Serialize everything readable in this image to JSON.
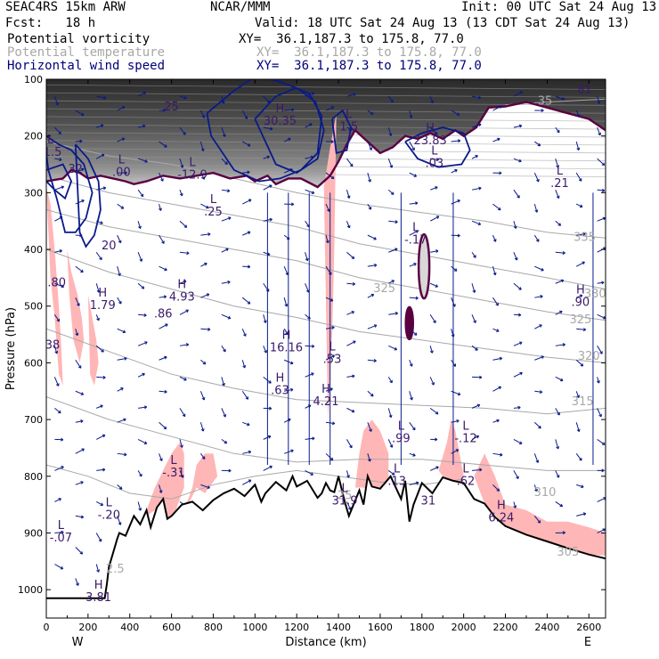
{
  "header": {
    "model": "SEAC4RS 15km ARW",
    "center": "NCAR/MMM",
    "init": "Init: 00 UTC Sat 24 Aug 13",
    "fcst": "Fcst:   18 h",
    "valid": "Valid: 18 UTC Sat 24 Aug 13 (13 CDT Sat 24 Aug 13)",
    "fields": [
      {
        "label": "Potential vorticity",
        "xy": "XY=  36.1,187.3 to 175.8, 77.0",
        "color": "#000000"
      },
      {
        "label": "Potential temperature",
        "xy": "XY=  36.1,187.3 to 175.8, 77.0",
        "color": "#a8a8a8"
      },
      {
        "label": "Horizontal wind speed",
        "xy": "XY=  36.1,187.3 to 175.8, 77.0",
        "color": "#00007a"
      }
    ]
  },
  "colors": {
    "pv_contour": "#5a0040",
    "pv_fill_dark": "#3a3a3a",
    "theta_contour": "#a8a8a8",
    "wind_contour": "#0a1a8a",
    "hl_label": "#3a1a6a",
    "shading_pink": "#ffb6b6",
    "terrain": "#000000"
  },
  "chart_data": {
    "type": "cross-section",
    "xlabel": "Distance (km)",
    "ylabel": "Pressure (hPa)",
    "xlim": [
      0,
      2680
    ],
    "ylim": [
      1050,
      100
    ],
    "x_ticks": [
      "0",
      "200",
      "400",
      "600",
      "800",
      "1000",
      "1200",
      "1400",
      "1600",
      "1800",
      "2000",
      "2200",
      "2400",
      "2600"
    ],
    "x_tick_values": [
      0,
      200,
      400,
      600,
      800,
      1000,
      1200,
      1400,
      1600,
      1800,
      2000,
      2200,
      2400,
      2600
    ],
    "y_ticks": [
      "100",
      "200",
      "300",
      "400",
      "500",
      "600",
      "700",
      "800",
      "900",
      "1000"
    ],
    "y_tick_values": [
      100,
      200,
      300,
      400,
      500,
      600,
      700,
      800,
      900,
      1000
    ],
    "end_labels": {
      "left": "W",
      "right": "E"
    },
    "terrain": {
      "x": [
        0,
        100,
        280,
        290,
        300,
        320,
        340,
        350,
        380,
        420,
        450,
        480,
        500,
        530,
        560,
        580,
        600,
        650,
        700,
        750,
        800,
        850,
        900,
        950,
        1000,
        1030,
        1050,
        1100,
        1150,
        1180,
        1200,
        1250,
        1300,
        1320,
        1340,
        1360,
        1380,
        1400,
        1430,
        1450,
        1500,
        1520,
        1540,
        1560,
        1600,
        1650,
        1700,
        1720,
        1740,
        1760,
        1800,
        1850,
        1900,
        1950,
        2000,
        2050,
        2100,
        2150,
        2200,
        2300,
        2400,
        2500,
        2600,
        2680
      ],
      "p": [
        1015,
        1015,
        1015,
        990,
        960,
        935,
        910,
        900,
        905,
        870,
        885,
        860,
        890,
        855,
        840,
        875,
        870,
        850,
        845,
        860,
        842,
        830,
        822,
        835,
        815,
        845,
        830,
        810,
        825,
        800,
        818,
        808,
        838,
        830,
        812,
        825,
        828,
        800,
        845,
        870,
        825,
        850,
        800,
        818,
        822,
        800,
        840,
        808,
        880,
        850,
        812,
        830,
        802,
        808,
        812,
        840,
        848,
        872,
        888,
        903,
        915,
        927,
        938,
        945
      ]
    },
    "theta_levels": [
      "305",
      "310",
      "315",
      "320",
      "325",
      "330",
      "335",
      "35"
    ],
    "theta_lines": [
      {
        "label": "335",
        "x": [
          0,
          300,
          600,
          900,
          1200,
          1500,
          1800,
          2100,
          2400,
          2680
        ],
        "p": [
          210,
          235,
          250,
          275,
          300,
          320,
          335,
          350,
          370,
          380
        ]
      },
      {
        "label": "330",
        "x": [
          0,
          300,
          600,
          900,
          1200,
          1500,
          1800,
          2100,
          2400,
          2680
        ],
        "p": [
          270,
          300,
          320,
          340,
          360,
          390,
          410,
          430,
          450,
          470
        ]
      },
      {
        "label": "325",
        "x": [
          0,
          300,
          600,
          900,
          1200,
          1500,
          1800,
          2100,
          2400,
          2680
        ],
        "p": [
          330,
          360,
          380,
          400,
          420,
          450,
          470,
          490,
          510,
          525
        ]
      },
      {
        "label": "320",
        "x": [
          0,
          300,
          600,
          900,
          1200,
          1500,
          1800,
          2100,
          2400,
          2680
        ],
        "p": [
          400,
          440,
          470,
          500,
          520,
          545,
          560,
          575,
          590,
          600
        ]
      },
      {
        "label": "315",
        "x": [
          0,
          300,
          600,
          900,
          1200,
          1500,
          1800,
          2100,
          2400,
          2680
        ],
        "p": [
          540,
          580,
          620,
          645,
          665,
          670,
          675,
          680,
          690,
          680
        ]
      },
      {
        "label": "310",
        "x": [
          0,
          300,
          600,
          900,
          1200,
          1500,
          1800,
          2100,
          2400,
          2680
        ],
        "p": [
          660,
          700,
          730,
          760,
          775,
          770,
          770,
          780,
          790,
          790
        ]
      },
      {
        "label": "305",
        "x": [
          0,
          200,
          400,
          600,
          800,
          1000,
          1200,
          1400,
          1600,
          1800,
          2000
        ],
        "p": [
          780,
          800,
          830,
          840,
          815,
          800,
          790,
          800,
          810,
          815,
          805
        ]
      },
      {
        "label": "35",
        "x": [
          2200,
          2400,
          2680
        ],
        "p": [
          145,
          140,
          135
        ]
      }
    ],
    "pv_boundary": {
      "x": [
        0,
        80,
        120,
        160,
        200,
        260,
        320,
        380,
        420,
        480,
        560,
        640,
        720,
        800,
        880,
        960,
        1000,
        1060,
        1100,
        1160,
        1220,
        1300,
        1360,
        1400,
        1440,
        1480,
        1540,
        1600,
        1660,
        1720,
        1780,
        1840,
        1900,
        1960,
        2000,
        2060,
        2120,
        2200,
        2300,
        2400,
        2500,
        2600,
        2680
      ],
      "p": [
        280,
        275,
        260,
        265,
        275,
        270,
        275,
        280,
        285,
        280,
        270,
        275,
        270,
        265,
        275,
        270,
        280,
        270,
        285,
        275,
        275,
        290,
        270,
        245,
        215,
        190,
        210,
        230,
        220,
        200,
        205,
        195,
        205,
        190,
        200,
        185,
        150,
        148,
        140,
        150,
        160,
        170,
        190
      ]
    },
    "pv_closed_contours": [
      {
        "label": "-.17",
        "center_x": 1810,
        "center_p": 430
      },
      {
        "label": "",
        "center_x": 1740,
        "center_p": 530
      }
    ],
    "wind_contours": [
      {
        "label": "25",
        "x": [
          0,
          20,
          60,
          120,
          180,
          220,
          190,
          140,
          90,
          50,
          10,
          0
        ],
        "p": [
          200,
          205,
          215,
          225,
          250,
          300,
          345,
          370,
          370,
          310,
          260,
          230
        ]
      },
      {
        "label": "20",
        "x": [
          140,
          200,
          250,
          260,
          230,
          190,
          160,
          140
        ],
        "p": [
          215,
          240,
          280,
          330,
          375,
          395,
          370,
          215
        ]
      },
      {
        "label": "32",
        "x": [
          0,
          80,
          120,
          90,
          40,
          0
        ],
        "p": [
          260,
          250,
          280,
          310,
          295,
          280
        ]
      },
      {
        "label": "25",
        "x": [
          770,
          900,
          1000,
          1080,
          1160,
          1260,
          1320,
          1300,
          1220,
          1120,
          1020,
          900,
          790,
          770
        ],
        "p": [
          160,
          120,
          95,
          100,
          110,
          125,
          165,
          230,
          260,
          275,
          280,
          260,
          200,
          160
        ]
      },
      {
        "label": "30.35",
        "x": [
          1000,
          1100,
          1200,
          1290,
          1330,
          1300,
          1200,
          1100,
          1000
        ],
        "p": [
          170,
          130,
          115,
          140,
          190,
          240,
          265,
          250,
          170
        ]
      },
      {
        "label": "23.83",
        "x": [
          1720,
          1800,
          1900,
          2000,
          2030,
          1990,
          1880,
          1780,
          1720
        ],
        "p": [
          210,
          195,
          185,
          195,
          225,
          250,
          255,
          240,
          210
        ]
      },
      {
        "label": "1.5",
        "x": [
          1370,
          1420,
          1460,
          1440,
          1390,
          1370
        ],
        "p": [
          170,
          155,
          185,
          225,
          230,
          170
        ]
      }
    ],
    "shaded_regions": [
      {
        "x": [
          0,
          20,
          40,
          60,
          70,
          80,
          60,
          40,
          20,
          0
        ],
        "p": [
          290,
          320,
          400,
          500,
          560,
          640,
          620,
          520,
          450,
          290
        ]
      },
      {
        "x": [
          100,
          120,
          150,
          170,
          180,
          160,
          130,
          110,
          100
        ],
        "p": [
          400,
          440,
          480,
          520,
          560,
          600,
          560,
          480,
          400
        ]
      },
      {
        "x": [
          200,
          220,
          240,
          250,
          230,
          210,
          200
        ],
        "p": [
          480,
          520,
          560,
          600,
          640,
          620,
          480
        ]
      },
      {
        "x": [
          1330,
          1360,
          1390,
          1380,
          1370,
          1350,
          1330
        ],
        "p": [
          290,
          220,
          160,
          400,
          550,
          700,
          290
        ]
      },
      {
        "x": [
          420,
          480,
          520,
          560,
          600,
          640,
          660,
          660,
          640,
          600,
          560,
          520,
          480,
          440,
          420
        ],
        "p": [
          900,
          860,
          820,
          790,
          760,
          740,
          760,
          820,
          840,
          880,
          880,
          860,
          870,
          900,
          900
        ]
      },
      {
        "x": [
          660,
          700,
          720,
          760,
          800,
          820,
          760,
          720,
          680,
          660
        ],
        "p": [
          860,
          820,
          780,
          760,
          760,
          800,
          830,
          820,
          850,
          860
        ]
      },
      {
        "x": [
          1480,
          1500,
          1520,
          1560,
          1600,
          1640,
          1640,
          1600,
          1560,
          1520,
          1480
        ],
        "p": [
          820,
          760,
          720,
          700,
          720,
          760,
          820,
          840,
          830,
          820,
          820
        ]
      },
      {
        "x": [
          1880,
          1920,
          1940,
          1960,
          1980,
          2000,
          1980,
          1940,
          1900,
          1880
        ],
        "p": [
          790,
          740,
          700,
          720,
          760,
          800,
          820,
          810,
          800,
          790
        ]
      },
      {
        "x": [
          2050,
          2100,
          2150,
          2200,
          2300,
          2400,
          2500,
          2600,
          2680,
          2680,
          2600,
          2500,
          2400,
          2300,
          2200,
          2100,
          2050
        ],
        "p": [
          800,
          760,
          800,
          850,
          860,
          880,
          880,
          890,
          900,
          940,
          938,
          927,
          915,
          903,
          888,
          848,
          800
        ]
      }
    ],
    "hl_labels": [
      {
        "letter": "L",
        "value": "-1.5",
        "x": 20,
        "p": 235
      },
      {
        "letter": "",
        "value": "32",
        "x": 140,
        "p": 265
      },
      {
        "letter": "L",
        "value": ".00",
        "x": 360,
        "p": 270
      },
      {
        "letter": "L",
        "value": "-12.9",
        "x": 700,
        "p": 275
      },
      {
        "letter": "L",
        "value": ".25",
        "x": 800,
        "p": 340
      },
      {
        "letter": "",
        "value": "20",
        "x": 300,
        "p": 400
      },
      {
        "letter": "",
        "value": "25",
        "x": 600,
        "p": 155
      },
      {
        "letter": "H",
        "value": "30.35",
        "x": 1120,
        "p": 180
      },
      {
        "letter": "L",
        "value": "1.5",
        "x": 1450,
        "p": 190
      },
      {
        "letter": "H",
        "value": "23.83",
        "x": 1840,
        "p": 215
      },
      {
        "letter": "L",
        "value": ".03",
        "x": 1860,
        "p": 255
      },
      {
        "letter": "L",
        "value": ".21",
        "x": 2460,
        "p": 290
      },
      {
        "letter": "L",
        "value": "-.17",
        "x": 1770,
        "p": 390
      },
      {
        "letter": "",
        "value": ".80",
        "x": 50,
        "p": 465
      },
      {
        "letter": "H",
        "value": "1.79",
        "x": 270,
        "p": 505
      },
      {
        "letter": "H",
        "value": "4.93",
        "x": 650,
        "p": 490
      },
      {
        "letter": "",
        "value": ".86",
        "x": 560,
        "p": 520
      },
      {
        "letter": "",
        "value": "38",
        "x": 30,
        "p": 575
      },
      {
        "letter": "H",
        "value": "16.16",
        "x": 1150,
        "p": 580
      },
      {
        "letter": "L",
        "value": ".53",
        "x": 1370,
        "p": 600
      },
      {
        "letter": "H",
        "value": ".63",
        "x": 1120,
        "p": 655
      },
      {
        "letter": "H",
        "value": "4.21",
        "x": 1340,
        "p": 675
      },
      {
        "letter": "H",
        "value": ".90",
        "x": 2560,
        "p": 500
      },
      {
        "letter": "L",
        "value": ".99",
        "x": 1700,
        "p": 740
      },
      {
        "letter": "L",
        "value": "-.12",
        "x": 2010,
        "p": 740
      },
      {
        "letter": "L",
        "value": "-.31",
        "x": 610,
        "p": 800
      },
      {
        "letter": "L",
        "value": ".13",
        "x": 1680,
        "p": 815
      },
      {
        "letter": "L",
        "value": ".62",
        "x": 2010,
        "p": 815
      },
      {
        "letter": "L",
        "value": "-.20",
        "x": 300,
        "p": 875
      },
      {
        "letter": "L",
        "value": "-.07",
        "x": 70,
        "p": 915
      },
      {
        "letter": "H",
        "value": "6.24",
        "x": 2180,
        "p": 880
      },
      {
        "letter": "L",
        "value": "31.9",
        "x": 1430,
        "p": 850
      },
      {
        "letter": "",
        "value": "31",
        "x": 1830,
        "p": 850
      },
      {
        "letter": "H",
        "value": "3.81",
        "x": 250,
        "p": 1020
      },
      {
        "letter": "",
        "value": "81",
        "x": 2580,
        "p": 125
      }
    ],
    "theta_label_positions": [
      {
        "text": "335",
        "x": 2580,
        "p": 385
      },
      {
        "text": "330",
        "x": 2630,
        "p": 485
      },
      {
        "text": "325",
        "x": 1620,
        "p": 475
      },
      {
        "text": "325",
        "x": 2560,
        "p": 530
      },
      {
        "text": "320",
        "x": 2600,
        "p": 595
      },
      {
        "text": "315",
        "x": 2570,
        "p": 675
      },
      {
        "text": "310",
        "x": 2390,
        "p": 835
      },
      {
        "text": "305",
        "x": 2500,
        "p": 940
      },
      {
        "text": "35",
        "x": 2390,
        "p": 145
      },
      {
        "text": "25",
        "x": 1430,
        "p": 840
      },
      {
        "text": "2.5",
        "x": 330,
        "p": 970
      }
    ]
  }
}
